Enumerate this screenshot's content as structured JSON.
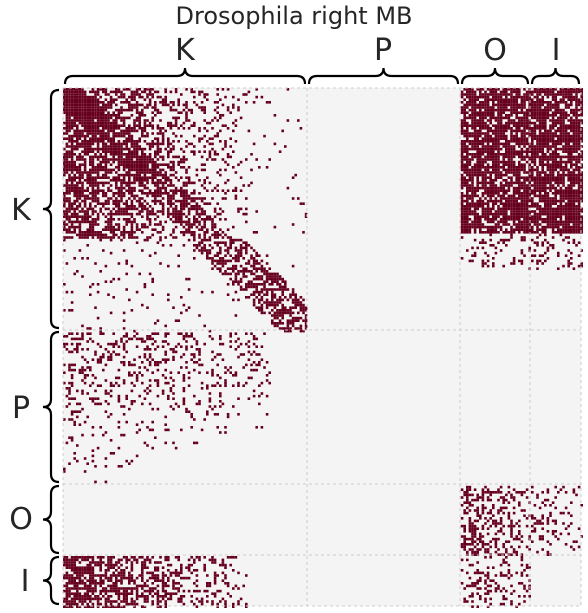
{
  "title": "Drosophila right MB",
  "blocks": [
    {
      "label": "K"
    },
    {
      "label": "P"
    },
    {
      "label": "O"
    },
    {
      "label": "I"
    }
  ],
  "colors": {
    "edge": "#67001f",
    "background": "#f4f4f4",
    "divider": "#cccccc",
    "text": "#262626"
  }
}
